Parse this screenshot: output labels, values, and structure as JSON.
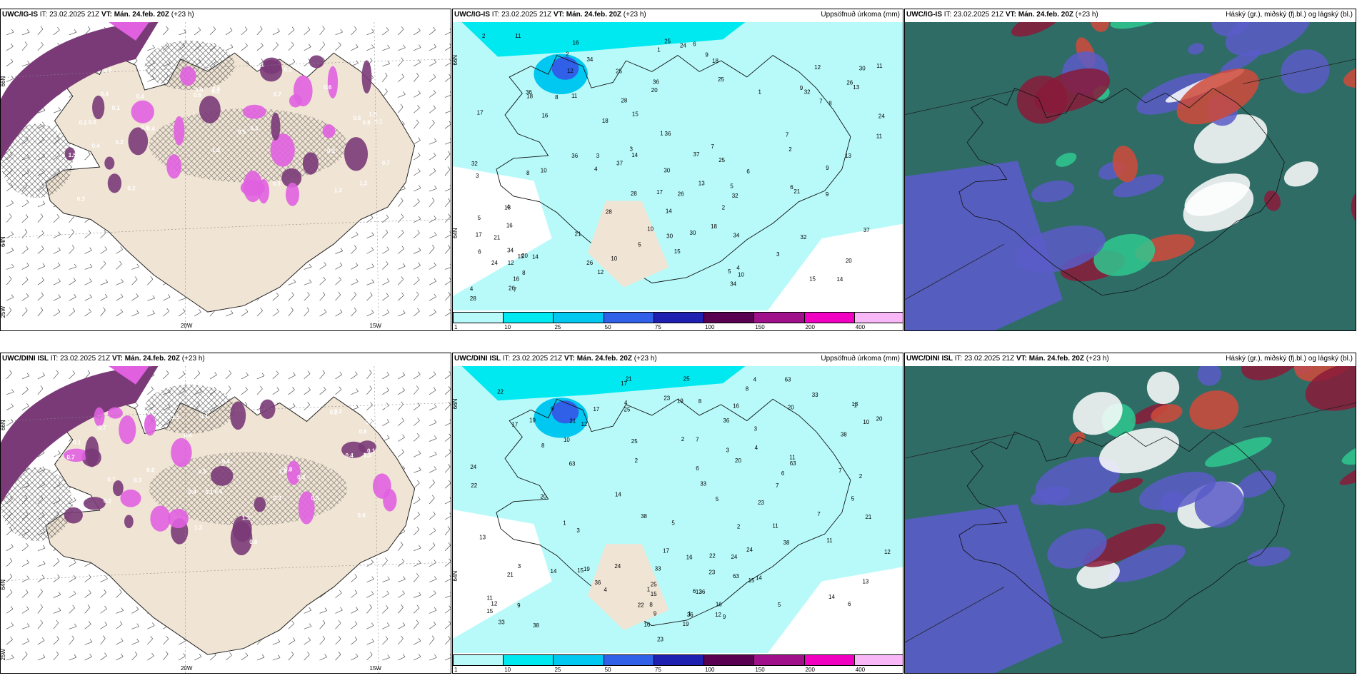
{
  "panels": [
    {
      "id": "top-left",
      "header_bold": "UWC/IG-IS",
      "header_it": "IT: 23.02.2025 21Z",
      "header_vt": "VT: Mán. 24.feb. 20Z",
      "header_lead": "(+23",
      "header_extra": "h)",
      "right": ""
    },
    {
      "id": "top-mid",
      "header_bold": "UWC/IG-IS",
      "header_it": "IT: 23.02.2025 21Z",
      "header_vt": "VT: Mán. 24.feb. 20Z",
      "header_lead": "(+23 h)",
      "right": "Uppsöfnuð úrkoma (mm)"
    },
    {
      "id": "top-right",
      "header_bold": "UWC/IG-IS",
      "header_it": "IT: 23.02.2025 21Z",
      "header_vt": "VT: Mán. 24.feb. 20Z",
      "header_lead": "(+23 h)",
      "right": "Háský (gr.), miðský (fj.bl.) og lágský (bl.)"
    },
    {
      "id": "bot-left",
      "header_bold": "UWC/DINI ISL",
      "header_it": "IT: 23.02.2025 21Z",
      "header_vt": "VT: Mán. 24.feb. 20Z",
      "header_lead": "(+23 h)",
      "right": ""
    },
    {
      "id": "bot-mid",
      "header_bold": "UWC/DINI ISL",
      "header_it": "IT: 23.02.2025 21Z",
      "header_vt": "VT: Mán. 24.feb. 20Z",
      "header_lead": "(+23 h)",
      "right": "Uppsöfnuð úrkoma (mm)"
    },
    {
      "id": "bot-right",
      "header_bold": "UWC/DINI ISL",
      "header_it": "IT: 23.02.2025 21Z",
      "header_vt": "VT: Mán. 24.feb. 20Z",
      "header_lead": "(+23 h)",
      "right": "Háský (gr.), miðský (fj.bl.) og lágský (bl.)"
    }
  ],
  "axis_labels": {
    "lat66": "66N",
    "lat64": "64N",
    "lon25": "25W",
    "lon20": "20W",
    "lon15": "15W"
  },
  "colorbar": {
    "ticks": [
      "1",
      "10",
      "25",
      "50",
      "75",
      "100",
      "150",
      "200",
      "400"
    ],
    "colors": [
      "#b8fafa",
      "#00e8f0",
      "#00c8f0",
      "#3060e8",
      "#2020b0",
      "#5a0050",
      "#a0108a",
      "#f000c0",
      "#f8b8f8"
    ]
  },
  "colors": {
    "land": "#f0e4d4",
    "sea_precip": "#b8fafa",
    "snow_purple": "#7a3a78",
    "snow_magenta": "#e060e0",
    "cloud_teal": "#2f6c66",
    "cloud_blue": "#5a5cc8",
    "cloud_red": "#8a1a3a"
  },
  "precip_top": [
    "12",
    "13",
    "14",
    "15",
    "16",
    "18",
    "25",
    "26",
    "28",
    "30",
    "32",
    "34",
    "36",
    "11",
    "10",
    "9",
    "8",
    "7",
    "6",
    "5",
    "4",
    "3",
    "2",
    "1",
    "17",
    "20",
    "21",
    "24",
    "37"
  ],
  "precip_bot": [
    "14",
    "12",
    "13",
    "11",
    "15",
    "22",
    "24",
    "21",
    "33",
    "38",
    "36",
    "17",
    "63",
    "25",
    "19",
    "20",
    "23",
    "8",
    "7",
    "6",
    "5",
    "4",
    "3",
    "2",
    "1",
    "9",
    "10",
    "16"
  ],
  "snow_labels": [
    "0.1",
    "0.2",
    "0.3",
    "0.4",
    "0.5",
    "0.6",
    "0.7",
    "0.8",
    "1.3",
    "1.5"
  ]
}
